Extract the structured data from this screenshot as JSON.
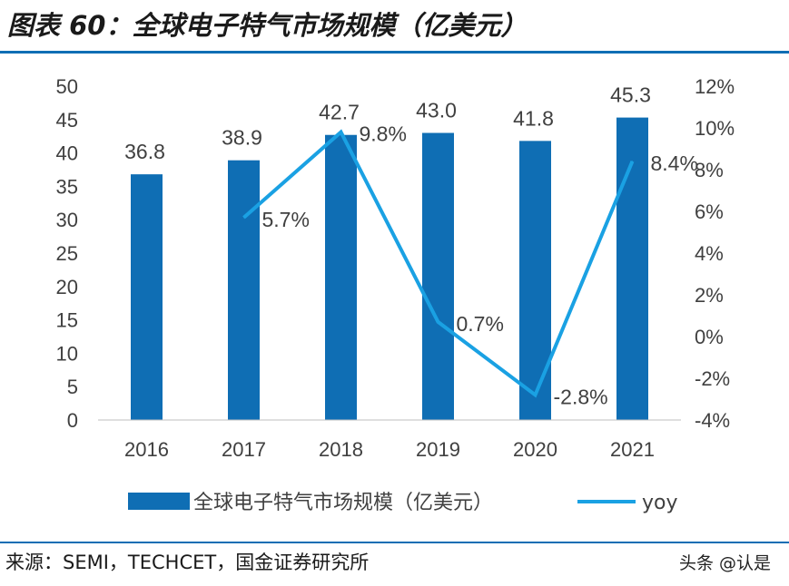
{
  "header": {
    "title": "图表 60：全球电子特气市场规模（亿美元）"
  },
  "footer": {
    "source": "来源：SEMI，TECHCET，国金证券研究所",
    "watermark": "头条 @认是"
  },
  "colors": {
    "bar": "#0f6eb4",
    "line": "#1aa1e3",
    "rule": "#0f6eb4",
    "text": "#404040"
  },
  "chart_data": {
    "type": "bar",
    "title": "",
    "categories": [
      "2016",
      "2017",
      "2018",
      "2019",
      "2020",
      "2021"
    ],
    "series": [
      {
        "name": "全球电子特气市场规模（亿美元）",
        "type": "bar",
        "axis": "left",
        "values": [
          36.8,
          38.9,
          42.7,
          43.0,
          41.8,
          45.3
        ],
        "labels": [
          "36.8",
          "38.9",
          "42.7",
          "43.0",
          "41.8",
          "45.3"
        ]
      },
      {
        "name": "yoy",
        "type": "line",
        "axis": "right",
        "values": [
          null,
          5.7,
          9.8,
          0.7,
          -2.8,
          8.4
        ],
        "labels": [
          "",
          "5.7%",
          "9.8%",
          "0.7%",
          "-2.8%",
          "8.4%"
        ]
      }
    ],
    "y_left": {
      "ylim": [
        0,
        50
      ],
      "ticks": [
        "0",
        "5",
        "10",
        "15",
        "20",
        "25",
        "30",
        "35",
        "40",
        "45",
        "50"
      ]
    },
    "y_right": {
      "ylim": [
        -4,
        12
      ],
      "ticks": [
        "-4%",
        "-2%",
        "0%",
        "2%",
        "4%",
        "6%",
        "8%",
        "10%",
        "12%"
      ]
    },
    "legend": {
      "position": "bottom"
    },
    "grid": false
  }
}
